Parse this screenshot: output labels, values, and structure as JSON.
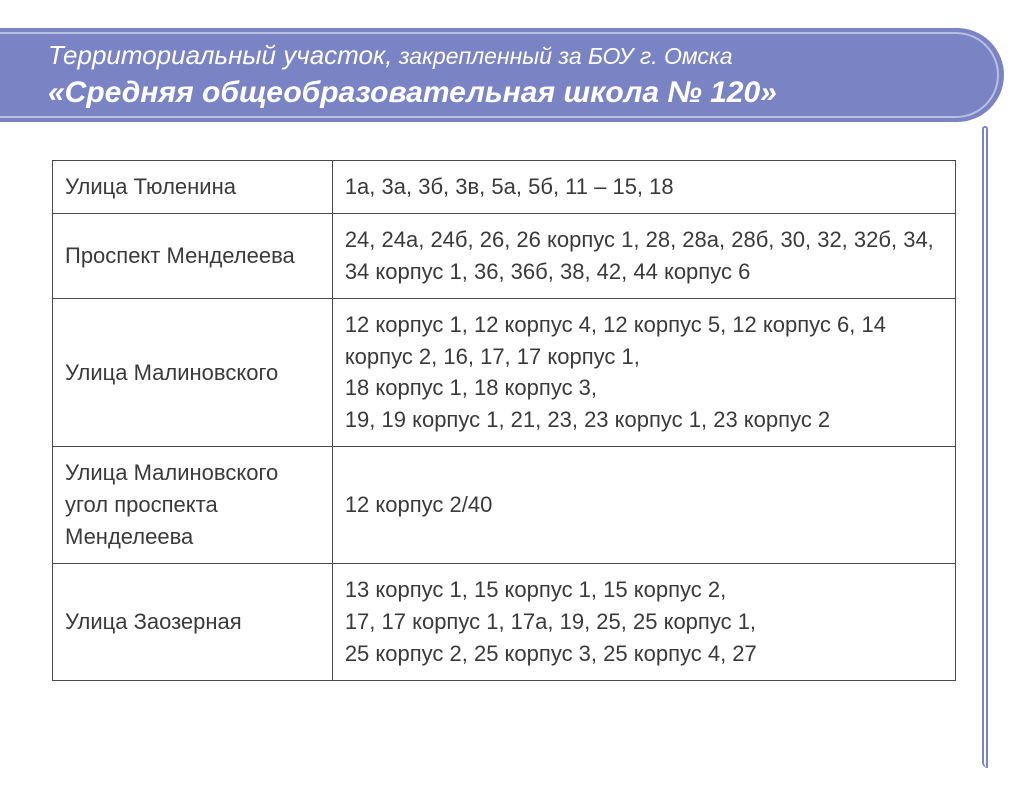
{
  "header": {
    "line1_a": "Территориальный участок,",
    "line1_b": " закрепленный за БОУ г. Омска",
    "line2": "«Средняя общеобразовательная школа № 120»"
  },
  "table": {
    "rows": [
      {
        "street": "Улица Тюленина",
        "numbers": "1а, 3а, 3б, 3в, 5а, 5б, 11 – 15, 18"
      },
      {
        "street": "Проспект Менделеева",
        "numbers": "24, 24а, 24б, 26, 26 корпус 1, 28, 28а, 28б, 30, 32, 32б, 34,\n34 корпус 1, 36, 36б, 38, 42, 44 корпус 6"
      },
      {
        "street": "Улица Малиновского",
        "numbers": "12 корпус 1, 12 корпус 4, 12 корпус 5, 12 корпус 6, 14 корпус 2, 16, 17, 17 корпус 1,\n18 корпус 1, 18 корпус 3,\n19, 19 корпус 1, 21, 23, 23 корпус 1, 23 корпус 2"
      },
      {
        "street": "Улица Малиновского угол проспекта Менделеева",
        "numbers": "12 корпус  2/40"
      },
      {
        "street": "Улица Заозерная",
        "numbers": "13 корпус 1, 15 корпус 1, 15 корпус 2,\n17, 17 корпус 1, 17а, 19, 25, 25 корпус 1,\n25 корпус 2, 25 корпус 3, 25 корпус 4, 27"
      }
    ]
  },
  "colors": {
    "header_bg": "#7a84c4",
    "header_inner_border": "#b9bfe0",
    "text": "#3a3a3a",
    "border": "#4a4a4a",
    "page_bg": "#ffffff"
  },
  "typography": {
    "title_large_pt": 30,
    "title_small_pt": 26,
    "body_pt": 22,
    "font_family": "Arial"
  }
}
